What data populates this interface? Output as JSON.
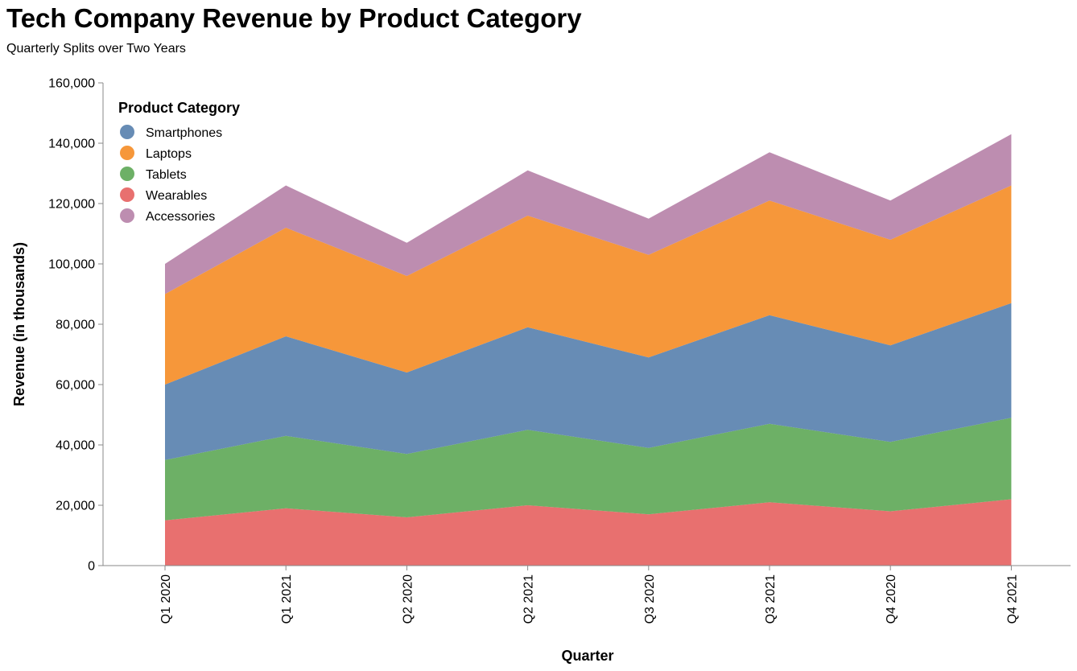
{
  "title": "Tech Company Revenue by Product Category",
  "subtitle": "Quarterly Splits over Two Years",
  "chart_data": {
    "type": "area",
    "stacked": true,
    "title": "Tech Company Revenue by Product Category",
    "subtitle": "Quarterly Splits over Two Years",
    "xlabel": "Quarter",
    "ylabel": "Revenue (in thousands)",
    "ylim": [
      0,
      160000
    ],
    "yticks": [
      0,
      20000,
      40000,
      60000,
      80000,
      100000,
      120000,
      140000,
      160000
    ],
    "ytick_labels": [
      "0",
      "20,000",
      "40,000",
      "60,000",
      "80,000",
      "100,000",
      "120,000",
      "140,000",
      "160,000"
    ],
    "categories": [
      "Q1 2020",
      "Q1 2021",
      "Q2 2020",
      "Q2 2021",
      "Q3 2020",
      "Q3 2021",
      "Q4 2020",
      "Q4 2021"
    ],
    "grid": false,
    "legend": {
      "title": "Product Category",
      "placement": "top-left",
      "items": [
        "Smartphones",
        "Laptops",
        "Tablets",
        "Wearables",
        "Accessories"
      ]
    },
    "series": [
      {
        "name": "Wearables",
        "color": "#e45756",
        "values": [
          15000,
          19000,
          16000,
          20000,
          17000,
          21000,
          18000,
          22000
        ]
      },
      {
        "name": "Tablets",
        "color": "#54a24b",
        "values": [
          20000,
          24000,
          21000,
          25000,
          22000,
          26000,
          23000,
          27000
        ]
      },
      {
        "name": "Smartphones",
        "color": "#4c78a8",
        "values": [
          25000,
          33000,
          27000,
          34000,
          30000,
          36000,
          32000,
          38000
        ]
      },
      {
        "name": "Laptops",
        "color": "#f58518",
        "values": [
          30000,
          36000,
          32000,
          37000,
          34000,
          38000,
          35000,
          39000
        ]
      },
      {
        "name": "Accessories",
        "color": "#b279a2",
        "values": [
          10000,
          14000,
          11000,
          15000,
          12000,
          16000,
          13000,
          17000
        ]
      }
    ],
    "legend_colors": {
      "Smartphones": "#4c78a8",
      "Laptops": "#f58518",
      "Tablets": "#54a24b",
      "Wearables": "#e45756",
      "Accessories": "#b279a2"
    }
  }
}
